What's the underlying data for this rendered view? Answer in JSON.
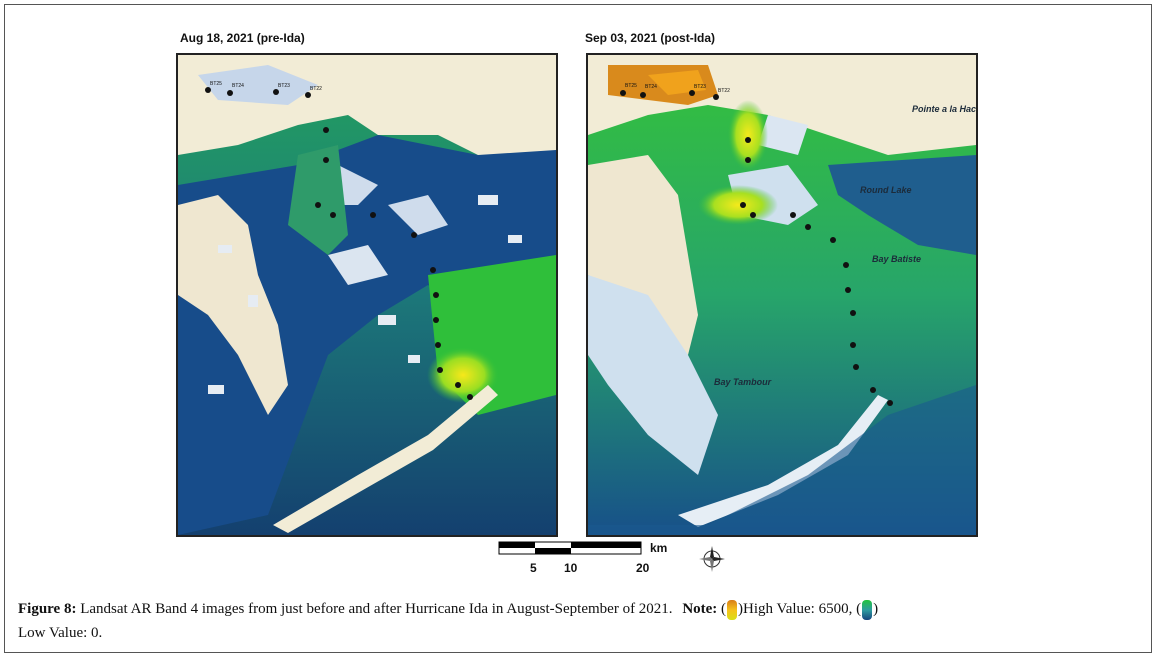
{
  "left_map": {
    "title": "Aug 18, 2021 (pre-Ida)",
    "station_labels": [
      "BT25",
      "BT24",
      "BT23",
      "BT22"
    ]
  },
  "right_map": {
    "title": "Sep 03, 2021 (post-Ida)",
    "station_labels": [
      "BT25",
      "BT24",
      "BT23",
      "BT22"
    ],
    "place_labels": {
      "point_a_la_hache": "Pointe a la Hache",
      "round_lake": "Round Lake",
      "bay_batiste": "Bay Batiste",
      "bay_tambour": "Bay Tambour"
    }
  },
  "scale_bar": {
    "unit": "km",
    "ticks": [
      "5",
      "10",
      "20"
    ]
  },
  "compass": {
    "icon": "compass-rose-icon"
  },
  "caption": {
    "figure_label": "Figure 8:",
    "text": "Landsat AR Band 4 images from just before and after Hurricane Ida in August-September of 2021.",
    "note_label": "Note:",
    "high_text": "High Value: 6500,",
    "low_text": "Low Value: 0."
  },
  "colors": {
    "high": "#d77d18",
    "mid": "#f6c21c",
    "green": "#22c33c",
    "low": "#17447d",
    "land": "#f2ecd6"
  }
}
